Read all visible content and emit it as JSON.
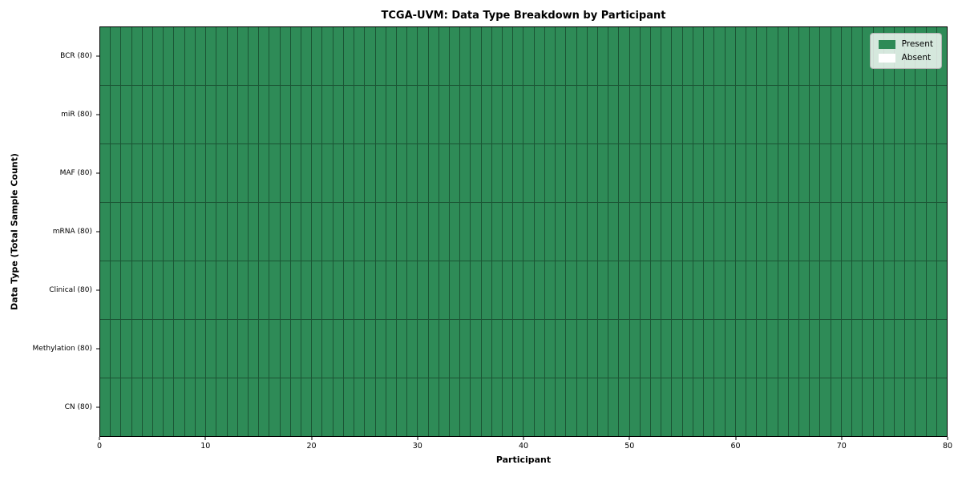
{
  "figure": {
    "title": "TCGA-UVM: Data Type Breakdown by Participant",
    "xlabel": "Participant",
    "ylabel": "Data Type (Total Sample Count)"
  },
  "chart_data": {
    "type": "heatmap",
    "title": "TCGA-UVM: Data Type Breakdown by Participant",
    "xlabel": "Participant",
    "ylabel": "Data Type (Total Sample Count)",
    "n_participants": 80,
    "x_axis": {
      "min": 0,
      "max": 80,
      "ticks": [
        0,
        10,
        20,
        30,
        40,
        50,
        60,
        70,
        80
      ]
    },
    "rows": [
      {
        "label": "BCR (80)",
        "data_type": "BCR",
        "total_sample_count": 80,
        "present_count": 80,
        "absent_count": 0
      },
      {
        "label": "miR (80)",
        "data_type": "miR",
        "total_sample_count": 80,
        "present_count": 80,
        "absent_count": 0
      },
      {
        "label": "MAF (80)",
        "data_type": "MAF",
        "total_sample_count": 80,
        "present_count": 80,
        "absent_count": 0
      },
      {
        "label": "mRNA (80)",
        "data_type": "mRNA",
        "total_sample_count": 80,
        "present_count": 80,
        "absent_count": 0
      },
      {
        "label": "Clinical (80)",
        "data_type": "Clinical",
        "total_sample_count": 80,
        "present_count": 80,
        "absent_count": 0
      },
      {
        "label": "Methylation (80)",
        "data_type": "Methylation",
        "total_sample_count": 80,
        "present_count": 80,
        "absent_count": 0
      },
      {
        "label": "CN (80)",
        "data_type": "CN",
        "total_sample_count": 80,
        "present_count": 80,
        "absent_count": 0
      }
    ],
    "all_cells_present": true,
    "legend": {
      "position": "upper right",
      "entries": [
        {
          "label": "Present",
          "color": "#2e8b57"
        },
        {
          "label": "Absent",
          "color": "#ffffff"
        }
      ]
    },
    "colors": {
      "present": "#2e8b57",
      "absent": "#ffffff",
      "cell_edge": "#1b5434",
      "axis": "#000000",
      "legend_border": "#b3b3b3",
      "background": "#ffffff"
    }
  }
}
